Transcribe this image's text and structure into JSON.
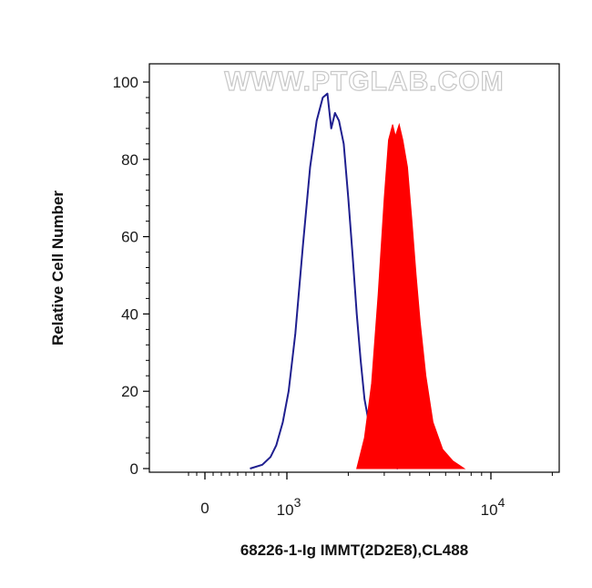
{
  "chart_data": {
    "type": "histogram",
    "title": "",
    "xlabel": "68226-1-Ig IMMT(2D2E8),CL488",
    "ylabel": "Relative Cell Number",
    "x_scale": "biexponential",
    "ylim": [
      0,
      100
    ],
    "y_ticks": [
      "0",
      "20",
      "40",
      "60",
      "80",
      "100"
    ],
    "x_ticks": [
      {
        "value": 0,
        "label": "0"
      },
      {
        "value": 1000,
        "base": "10",
        "exponent": "3"
      },
      {
        "value": 10000,
        "base": "10",
        "exponent": "4"
      }
    ],
    "grid": false,
    "legend": "none",
    "watermark": "WWW.PTGLAB.COM",
    "series": [
      {
        "style": "outline",
        "color": "#1f1f8f",
        "points": [
          [
            550,
            0
          ],
          [
            700,
            1
          ],
          [
            800,
            3
          ],
          [
            870,
            6
          ],
          [
            950,
            12
          ],
          [
            1020,
            20
          ],
          [
            1100,
            35
          ],
          [
            1200,
            58
          ],
          [
            1300,
            78
          ],
          [
            1400,
            90
          ],
          [
            1500,
            96
          ],
          [
            1580,
            97
          ],
          [
            1650,
            88
          ],
          [
            1720,
            92
          ],
          [
            1800,
            90
          ],
          [
            1900,
            84
          ],
          [
            2000,
            70
          ],
          [
            2100,
            55
          ],
          [
            2200,
            40
          ],
          [
            2300,
            28
          ],
          [
            2400,
            18
          ],
          [
            2600,
            8
          ],
          [
            2800,
            3
          ],
          [
            3100,
            1
          ],
          [
            3500,
            0
          ]
        ]
      },
      {
        "style": "filled",
        "color": "#ff0000",
        "points": [
          [
            2200,
            0
          ],
          [
            2400,
            8
          ],
          [
            2600,
            22
          ],
          [
            2800,
            45
          ],
          [
            3000,
            70
          ],
          [
            3150,
            85
          ],
          [
            3300,
            89
          ],
          [
            3400,
            86
          ],
          [
            3550,
            89
          ],
          [
            3700,
            85
          ],
          [
            3900,
            78
          ],
          [
            4100,
            64
          ],
          [
            4300,
            50
          ],
          [
            4500,
            38
          ],
          [
            4800,
            24
          ],
          [
            5200,
            12
          ],
          [
            5800,
            5
          ],
          [
            6500,
            2
          ],
          [
            7400,
            0
          ]
        ]
      }
    ]
  }
}
